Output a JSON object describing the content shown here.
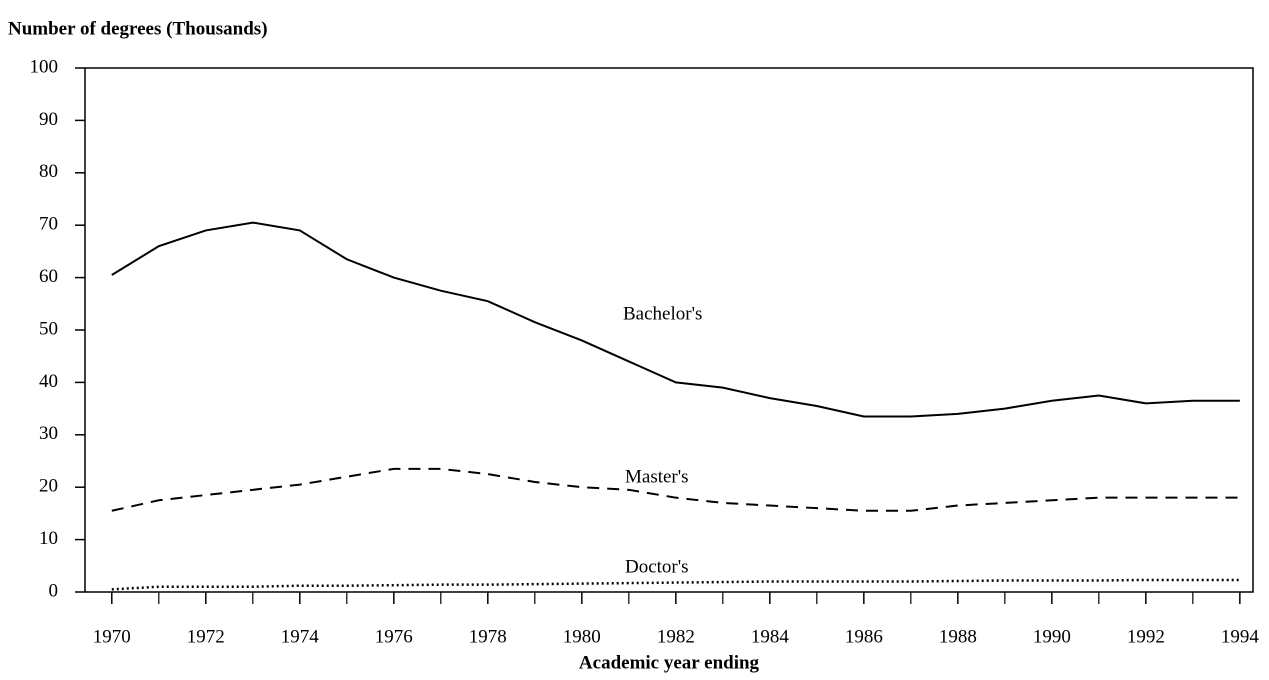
{
  "chart_data": {
    "type": "line",
    "title": "Number of degrees (Thousands)",
    "x_label": "Academic year ending",
    "x": [
      1970,
      1971,
      1972,
      1973,
      1974,
      1975,
      1976,
      1977,
      1978,
      1979,
      1980,
      1981,
      1982,
      1983,
      1984,
      1985,
      1986,
      1987,
      1988,
      1989,
      1990,
      1991,
      1992,
      1993,
      1994
    ],
    "series": [
      {
        "name": "Bachelor's",
        "color": "#000000",
        "dash": "solid",
        "values": [
          60.5,
          66,
          69,
          70.5,
          69,
          63.5,
          60,
          57.5,
          55.5,
          51.5,
          48,
          44,
          40,
          39,
          37,
          35.5,
          33.5,
          33.5,
          34,
          35,
          36.5,
          37.5,
          36,
          36.5,
          36.5
        ]
      },
      {
        "name": "Master's",
        "color": "#000000",
        "dash": "dashed",
        "values": [
          15.5,
          17.5,
          18.5,
          19.5,
          20.5,
          22,
          23.5,
          23.5,
          22.5,
          21,
          20,
          19.5,
          18,
          17,
          16.5,
          16,
          15.5,
          15.5,
          16.5,
          17,
          17.5,
          18,
          18,
          18,
          18
        ]
      },
      {
        "name": "Doctor's",
        "color": "#000000",
        "dash": "dotted",
        "values": [
          0.5,
          1,
          1,
          1,
          1.2,
          1.2,
          1.3,
          1.4,
          1.4,
          1.5,
          1.6,
          1.7,
          1.8,
          1.9,
          2,
          2,
          2,
          2,
          2.1,
          2.2,
          2.2,
          2.2,
          2.3,
          2.3,
          2.3
        ]
      }
    ],
    "xlim": [
      1969.43,
      1994.28
    ],
    "xticks": [
      1970,
      1972,
      1974,
      1976,
      1978,
      1980,
      1982,
      1984,
      1986,
      1988,
      1990,
      1992,
      1994
    ],
    "ylim": [
      0,
      100
    ],
    "yticks": [
      0,
      10,
      20,
      30,
      40,
      50,
      60,
      70,
      80,
      90,
      100
    ]
  }
}
